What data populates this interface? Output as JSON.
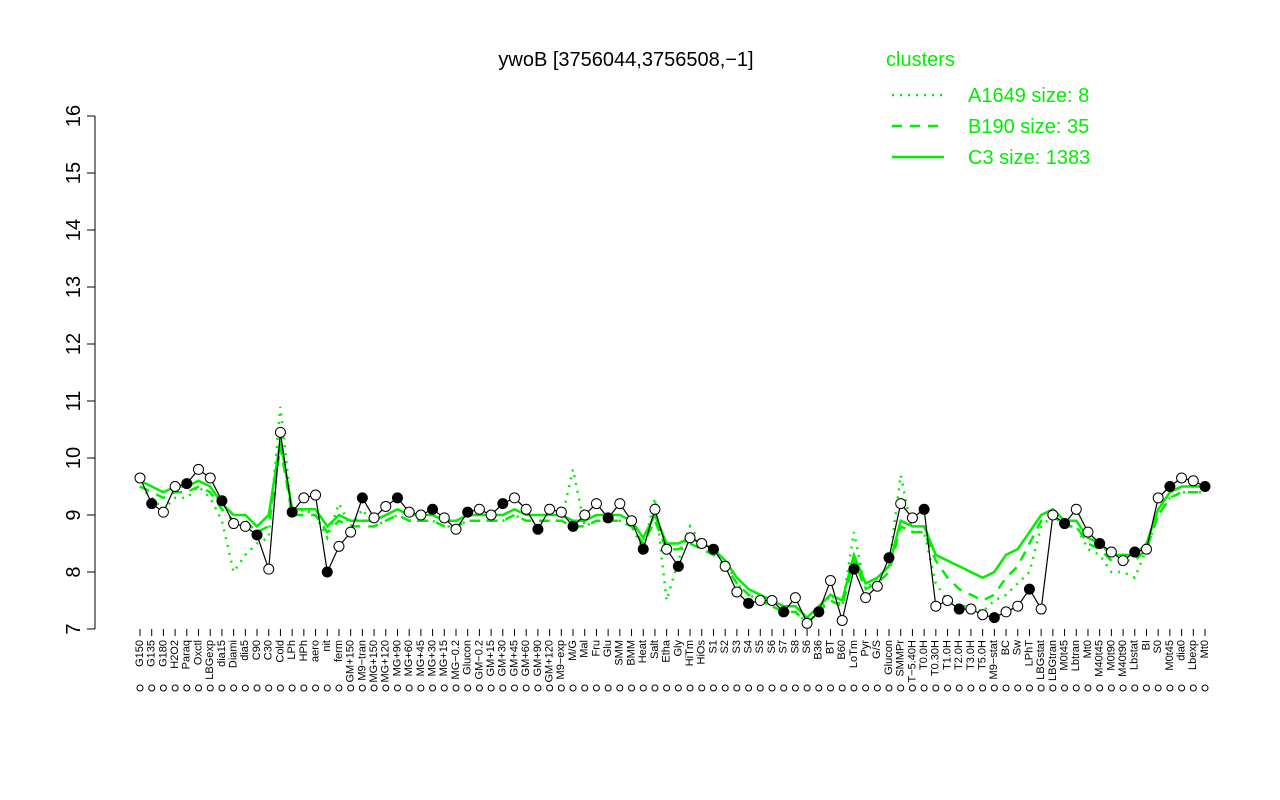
{
  "chart_data": {
    "type": "line",
    "title": "ywoB [3756044,3756508,−1]",
    "legend_title": "clusters",
    "color": "#000000",
    "categories": [
      "G150",
      "G135",
      "G180",
      "H2O2",
      "Paraq",
      "Oxctl",
      "LBGexp",
      "dia15",
      "Diami",
      "dia5",
      "C90",
      "C30",
      "Cold",
      "LPh",
      "HPh",
      "aero",
      "nit",
      "ferm",
      "GM+150",
      "M9−tran",
      "MG+150",
      "MG+120",
      "MG+90",
      "MG+60",
      "MG+45",
      "MG+30",
      "MG+15",
      "MG−0.2",
      "Glucon",
      "GM−0.2",
      "GM+15",
      "GM+30",
      "GM+45",
      "GM+60",
      "GM+90",
      "GM+120",
      "M9−exp",
      "M/G",
      "Mal",
      "Fru",
      "Glu",
      "SMM",
      "BMM",
      "Heat",
      "Salt",
      "Etha",
      "Gly",
      "HiTm",
      "HiOs",
      "S1",
      "S2",
      "S3",
      "S4",
      "S5",
      "S6",
      "S7",
      "S8",
      "S6",
      "B36",
      "BT",
      "B60",
      "LoTm",
      "Pyr",
      "G/S",
      "Glucon",
      "SMMPr",
      "T−5.40H",
      "T0.0H",
      "T0.30H",
      "T1.0H",
      "T2.0H",
      "T3.0H",
      "T5.0H",
      "M9−stat",
      "BC",
      "Sw",
      "LPhT",
      "LBGstat",
      "LBGtran",
      "M0t45",
      "Lbtran",
      "Mt0",
      "M40t45",
      "M0t90",
      "M40t90",
      "Lbstat",
      "BI",
      "S0",
      "M0t45",
      "dia0",
      "Lbexp",
      "Mt0"
    ],
    "values": [
      9.65,
      9.2,
      9.05,
      9.5,
      9.55,
      9.8,
      9.65,
      9.25,
      8.85,
      8.8,
      8.65,
      8.05,
      10.45,
      9.05,
      9.3,
      9.35,
      8.0,
      8.45,
      8.7,
      9.3,
      8.95,
      9.15,
      9.3,
      9.05,
      9.0,
      9.1,
      8.95,
      8.75,
      9.05,
      9.1,
      9.0,
      9.2,
      9.3,
      9.1,
      8.75,
      9.1,
      9.05,
      8.8,
      9.0,
      9.2,
      8.95,
      9.2,
      8.9,
      8.4,
      9.1,
      8.4,
      8.1,
      8.6,
      8.5,
      8.4,
      8.1,
      7.65,
      7.45,
      7.5,
      7.5,
      7.3,
      7.55,
      7.1,
      7.3,
      7.85,
      7.15,
      8.05,
      7.55,
      7.75,
      8.25,
      9.2,
      8.95,
      9.1,
      7.4,
      7.5,
      7.35,
      7.35,
      7.25,
      7.2,
      7.3,
      7.4,
      7.7,
      7.35,
      9.0,
      8.85,
      9.1,
      8.7,
      8.5,
      8.35,
      8.2,
      8.35,
      8.4,
      9.3,
      9.5,
      9.65,
      9.6,
      9.5
    ],
    "series": [
      {
        "name": "A1649 size: 8",
        "color": "#00ee00",
        "linestyle": "dotted",
        "values": [
          9.5,
          9.3,
          9.1,
          9.3,
          9.3,
          9.5,
          9.3,
          8.9,
          8.0,
          8.3,
          8.5,
          8.6,
          10.9,
          9.0,
          9.1,
          9.0,
          8.6,
          9.2,
          8.8,
          9.1,
          8.8,
          8.9,
          9.0,
          8.9,
          8.9,
          8.9,
          8.8,
          8.8,
          8.9,
          8.9,
          8.9,
          8.9,
          9.0,
          8.9,
          8.9,
          8.9,
          8.9,
          9.8,
          8.8,
          8.9,
          8.9,
          8.9,
          8.8,
          8.4,
          9.3,
          7.5,
          8.2,
          8.8,
          8.5,
          8.4,
          8.2,
          7.8,
          7.6,
          7.5,
          7.4,
          7.3,
          7.3,
          7.1,
          7.3,
          7.6,
          7.4,
          8.7,
          7.7,
          7.9,
          8.1,
          9.7,
          8.7,
          8.7,
          7.8,
          7.5,
          7.4,
          7.4,
          7.3,
          7.5,
          7.6,
          7.8,
          8.0,
          8.8,
          9.0,
          8.8,
          8.8,
          8.4,
          8.3,
          8.0,
          8.0,
          7.9,
          8.4,
          9.0,
          9.3,
          9.4,
          9.4,
          9.4
        ]
      },
      {
        "name": "B190 size: 35",
        "color": "#00ee00",
        "linestyle": "dashed",
        "values": [
          9.5,
          9.4,
          9.3,
          9.4,
          9.4,
          9.5,
          9.4,
          9.1,
          8.9,
          8.9,
          8.7,
          8.8,
          10.2,
          9.0,
          9.0,
          9.0,
          8.7,
          8.9,
          8.8,
          8.8,
          8.8,
          8.9,
          9.0,
          8.9,
          8.9,
          8.9,
          8.8,
          8.8,
          8.9,
          8.9,
          8.9,
          8.9,
          9.0,
          8.9,
          8.9,
          8.9,
          8.9,
          8.8,
          8.8,
          8.9,
          8.9,
          8.9,
          8.8,
          8.5,
          8.9,
          8.4,
          8.4,
          8.5,
          8.4,
          8.3,
          8.1,
          7.8,
          7.6,
          7.5,
          7.4,
          7.3,
          7.3,
          7.1,
          7.3,
          7.5,
          7.4,
          8.2,
          7.7,
          7.8,
          8.0,
          8.8,
          8.7,
          8.7,
          8.2,
          7.9,
          7.7,
          7.6,
          7.5,
          7.6,
          7.9,
          8.1,
          8.5,
          8.9,
          9.0,
          8.8,
          8.8,
          8.5,
          8.4,
          8.2,
          8.2,
          8.2,
          8.4,
          9.0,
          9.3,
          9.4,
          9.4,
          9.4
        ]
      },
      {
        "name": "C3 size: 1383",
        "color": "#00ee00",
        "linestyle": "solid",
        "values": [
          9.6,
          9.5,
          9.4,
          9.5,
          9.5,
          9.6,
          9.5,
          9.2,
          9.0,
          9.0,
          8.8,
          9.0,
          10.3,
          9.1,
          9.1,
          9.1,
          8.8,
          9.0,
          8.9,
          8.9,
          8.9,
          9.0,
          9.1,
          9.0,
          9.0,
          9.0,
          8.9,
          8.9,
          9.0,
          9.0,
          9.0,
          9.0,
          9.1,
          9.0,
          9.0,
          9.0,
          9.0,
          8.9,
          8.9,
          9.0,
          9.0,
          9.0,
          8.9,
          8.6,
          9.0,
          8.5,
          8.5,
          8.6,
          8.5,
          8.4,
          8.2,
          7.9,
          7.7,
          7.6,
          7.5,
          7.4,
          7.4,
          7.2,
          7.4,
          7.6,
          7.5,
          8.3,
          7.8,
          7.9,
          8.1,
          8.9,
          8.8,
          8.8,
          8.3,
          8.2,
          8.1,
          8.0,
          7.9,
          8.0,
          8.3,
          8.4,
          8.7,
          9.0,
          9.1,
          8.9,
          8.9,
          8.6,
          8.5,
          8.3,
          8.3,
          8.3,
          8.5,
          9.1,
          9.4,
          9.5,
          9.5,
          9.5
        ]
      }
    ],
    "ylim": [
      7,
      16
    ],
    "yticks": [
      7,
      8,
      9,
      10,
      11,
      12,
      13,
      14,
      15,
      16
    ],
    "legend": "top-right"
  }
}
